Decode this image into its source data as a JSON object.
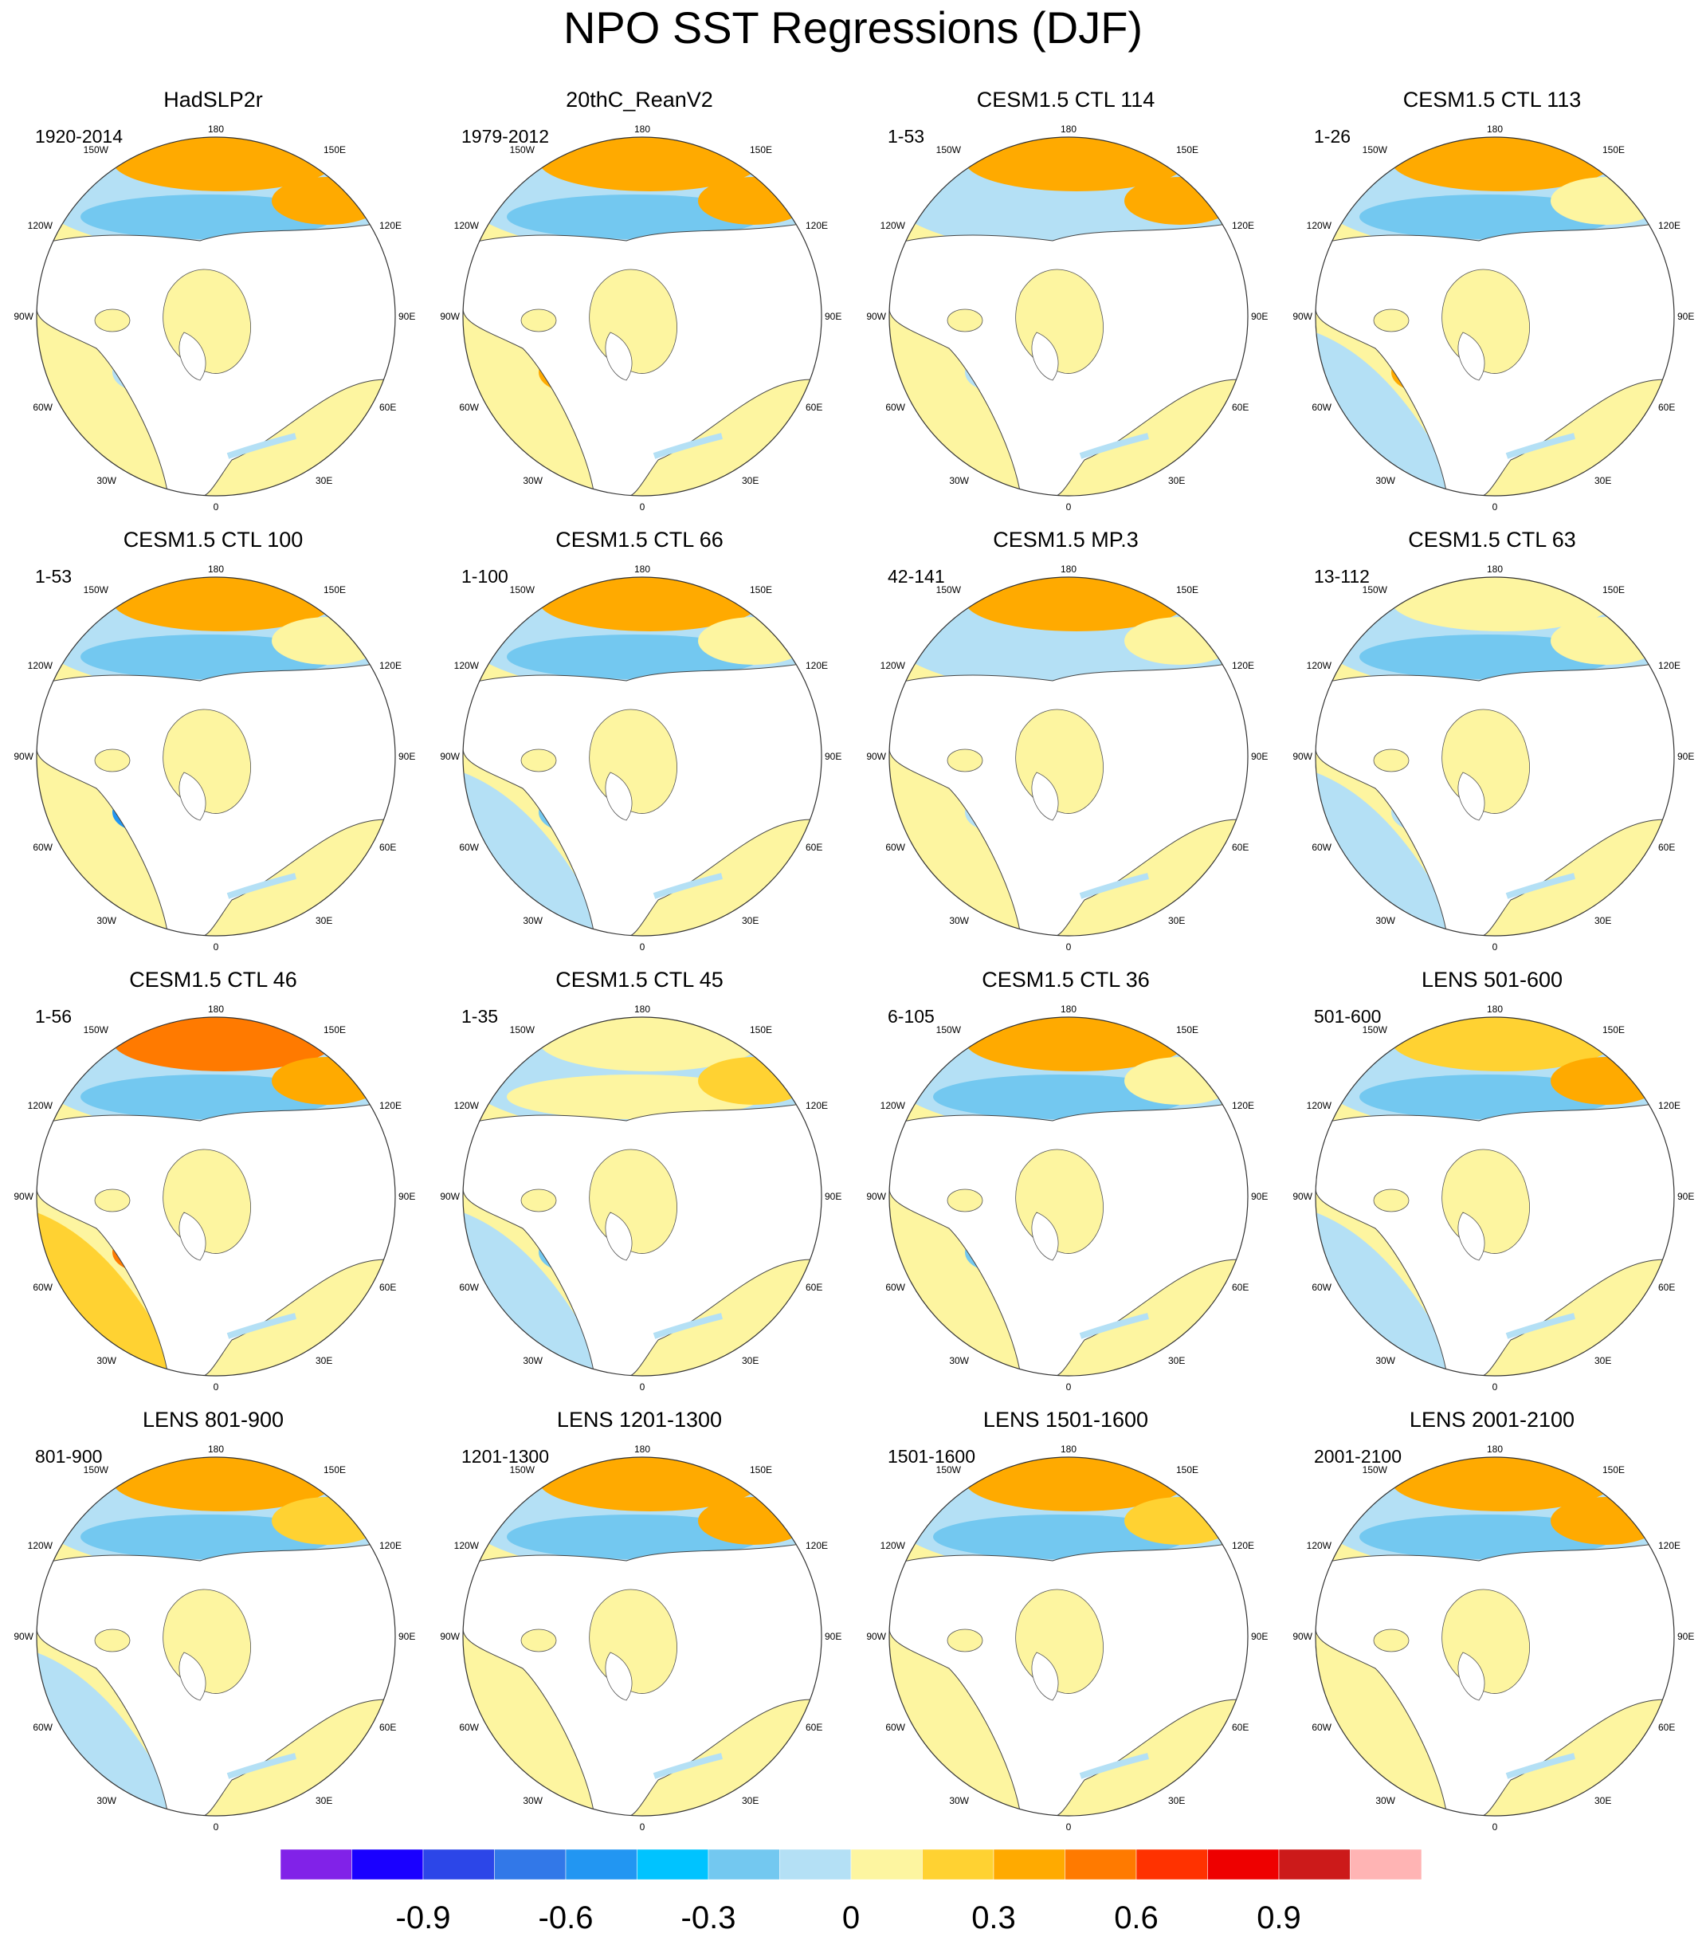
{
  "title": "NPO SST Regressions (DJF)",
  "longitude_labels": {
    "top": "180",
    "bottom": "0",
    "upper_left": "150W",
    "upper_right": "150E",
    "mid_upper_left": "120W",
    "mid_upper_right": "120E",
    "left": "90W",
    "right": "90E",
    "lower_left": "60W",
    "lower_right": "60E",
    "bottom_left": "30W",
    "bottom_right": "30E"
  },
  "panels": [
    {
      "title": "HadSLP2r",
      "years": "1920-2014",
      "pattern": {
        "north_pos": 0.3,
        "mid_neg": -0.2,
        "kuroshio": 0.3,
        "atlantic": 0.1,
        "gulf": -0.1
      }
    },
    {
      "title": "20thC_ReanV2",
      "years": "1979-2012",
      "pattern": {
        "north_pos": 0.3,
        "mid_neg": -0.2,
        "kuroshio": 0.4,
        "atlantic": 0.1,
        "gulf": 0.3
      }
    },
    {
      "title": "CESM1.5 CTL 114",
      "years": "1-53",
      "pattern": {
        "north_pos": 0.3,
        "mid_neg": -0.1,
        "kuroshio": 0.4,
        "atlantic": 0.1,
        "gulf": -0.1
      }
    },
    {
      "title": "CESM1.5 CTL 113",
      "years": "1-26",
      "pattern": {
        "north_pos": 0.3,
        "mid_neg": -0.3,
        "kuroshio": 0.1,
        "atlantic": -0.1,
        "gulf": 0.4
      }
    },
    {
      "title": "CESM1.5 CTL 100",
      "years": "1-53",
      "pattern": {
        "north_pos": 0.3,
        "mid_neg": -0.3,
        "kuroshio": 0.1,
        "atlantic": 0.1,
        "gulf": -0.5
      }
    },
    {
      "title": "CESM1.5 CTL 66",
      "years": "1-100",
      "pattern": {
        "north_pos": 0.3,
        "mid_neg": -0.2,
        "kuroshio": 0.1,
        "atlantic": -0.1,
        "gulf": -0.3
      }
    },
    {
      "title": "CESM1.5 MP.3",
      "years": "42-141",
      "pattern": {
        "north_pos": 0.4,
        "mid_neg": -0.1,
        "kuroshio": 0.1,
        "atlantic": 0.1,
        "gulf": -0.1
      }
    },
    {
      "title": "CESM1.5 CTL 63",
      "years": "13-112",
      "pattern": {
        "north_pos": 0.1,
        "mid_neg": -0.2,
        "kuroshio": 0.1,
        "atlantic": -0.1,
        "gulf": -0.1
      }
    },
    {
      "title": "CESM1.5 CTL 46",
      "years": "1-56",
      "pattern": {
        "north_pos": 0.5,
        "mid_neg": -0.2,
        "kuroshio": 0.3,
        "atlantic": 0.2,
        "gulf": 0.5
      }
    },
    {
      "title": "CESM1.5 CTL 45",
      "years": "1-35",
      "pattern": {
        "north_pos": 0.1,
        "mid_neg": 0.1,
        "kuroshio": 0.2,
        "atlantic": -0.1,
        "gulf": -0.2
      }
    },
    {
      "title": "CESM1.5 CTL 36",
      "years": "6-105",
      "pattern": {
        "north_pos": 0.3,
        "mid_neg": -0.2,
        "kuroshio": 0.1,
        "atlantic": 0.1,
        "gulf": -0.2
      }
    },
    {
      "title": "LENS 501-600",
      "years": "501-600",
      "pattern": {
        "north_pos": 0.2,
        "mid_neg": -0.3,
        "kuroshio": 0.4,
        "atlantic": -0.1,
        "gulf": 0.1
      }
    },
    {
      "title": "LENS 801-900",
      "years": "801-900",
      "pattern": {
        "north_pos": 0.3,
        "mid_neg": -0.2,
        "kuroshio": 0.2,
        "atlantic": -0.1,
        "gulf": 0.1
      }
    },
    {
      "title": "LENS 1201-1300",
      "years": "1201-1300",
      "pattern": {
        "north_pos": 0.3,
        "mid_neg": -0.2,
        "kuroshio": 0.3,
        "atlantic": 0.1,
        "gulf": 0.1
      }
    },
    {
      "title": "LENS 1501-1600",
      "years": "1501-1600",
      "pattern": {
        "north_pos": 0.4,
        "mid_neg": -0.2,
        "kuroshio": 0.2,
        "atlantic": 0.1,
        "gulf": 0.1
      }
    },
    {
      "title": "LENS 2001-2100",
      "years": "2001-2100",
      "pattern": {
        "north_pos": 0.3,
        "mid_neg": -0.2,
        "kuroshio": 0.3,
        "atlantic": 0.1,
        "gulf": 0.1
      }
    }
  ],
  "colorbar": {
    "colors": [
      "#8122e8",
      "#1a00ff",
      "#2c46e8",
      "#3278e8",
      "#2296f2",
      "#00c3ff",
      "#73c8f0",
      "#b4e0f5",
      "#fdf5a0",
      "#ffd232",
      "#ffaa00",
      "#ff7a00",
      "#ff3200",
      "#ee0000",
      "#cc1a1a",
      "#ffb4b4"
    ],
    "labels": [
      {
        "text": "-0.9",
        "index": 2
      },
      {
        "text": "-0.6",
        "index": 4
      },
      {
        "text": "-0.3",
        "index": 6
      },
      {
        "text": "0",
        "index": 8
      },
      {
        "text": "0.3",
        "index": 10
      },
      {
        "text": "0.6",
        "index": 12
      },
      {
        "text": "0.9",
        "index": 14
      }
    ]
  }
}
